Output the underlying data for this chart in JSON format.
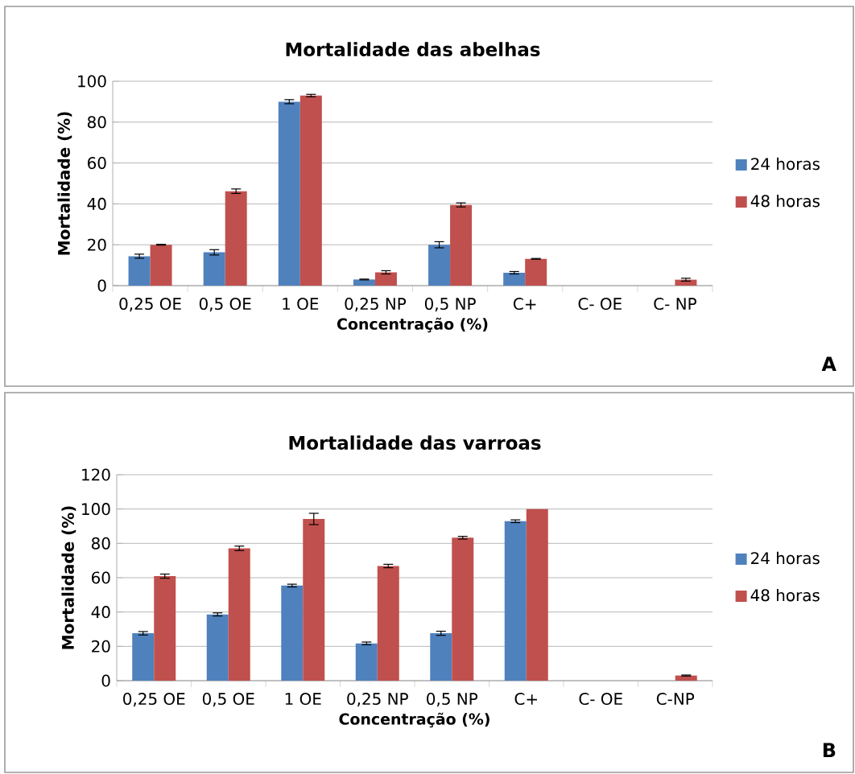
{
  "chart_data": [
    {
      "type": "bar",
      "title": "Mortalidade das abelhas",
      "xlabel": "Concentração (%)",
      "ylabel": "Mortalidade (%)",
      "categories": [
        "0,25 OE",
        "0,5 OE",
        "1 OE",
        "0,25 NP",
        "0,5 NP",
        "C+",
        "C- OE",
        "C- NP"
      ],
      "series": [
        {
          "name": "24 horas",
          "color": "#4f81bd",
          "values": [
            14.4,
            16.3,
            90,
            3,
            20,
            6.3,
            0,
            0
          ],
          "errors": [
            1,
            1.3,
            1,
            0.2,
            1.5,
            0.6,
            null,
            null
          ]
        },
        {
          "name": "48 horas",
          "color": "#c0504d",
          "values": [
            20,
            46.2,
            93,
            6.5,
            39.5,
            13.1,
            0,
            2.9
          ],
          "errors": [
            0.2,
            1.1,
            0.6,
            0.8,
            1,
            0.2,
            null,
            0.7
          ]
        }
      ],
      "ylim": [
        0,
        100
      ],
      "yticks": [
        0,
        20,
        40,
        60,
        80,
        100
      ],
      "grid": "y",
      "legend": "right",
      "annotations": [
        "A"
      ]
    },
    {
      "type": "bar",
      "title": "Mortalidade das varroas",
      "xlabel": "Concentração (%)",
      "ylabel": "Mortalidade (%)",
      "categories": [
        "0,25 OE",
        "0,5 OE",
        "1 OE",
        "0,25 NP",
        "0,5 NP",
        "C+",
        "C- OE",
        "C-NP"
      ],
      "series": [
        {
          "name": "24 horas",
          "color": "#4f81bd",
          "values": [
            27.6,
            38.6,
            55.4,
            21.7,
            27.6,
            92.9,
            0,
            0
          ],
          "errors": [
            1,
            0.9,
            0.8,
            0.8,
            1.2,
            0.8,
            null,
            null
          ]
        },
        {
          "name": "48 horas",
          "color": "#c0504d",
          "values": [
            60.9,
            77.1,
            94.2,
            66.8,
            83.3,
            100,
            0,
            3
          ],
          "errors": [
            1.2,
            1.3,
            3.3,
            1,
            0.8,
            null,
            null,
            0.3
          ]
        }
      ],
      "ylim": [
        0,
        120
      ],
      "yticks": [
        0,
        20,
        40,
        60,
        80,
        100,
        120
      ],
      "grid": "y",
      "legend": "right",
      "annotations": [
        "B"
      ]
    }
  ]
}
